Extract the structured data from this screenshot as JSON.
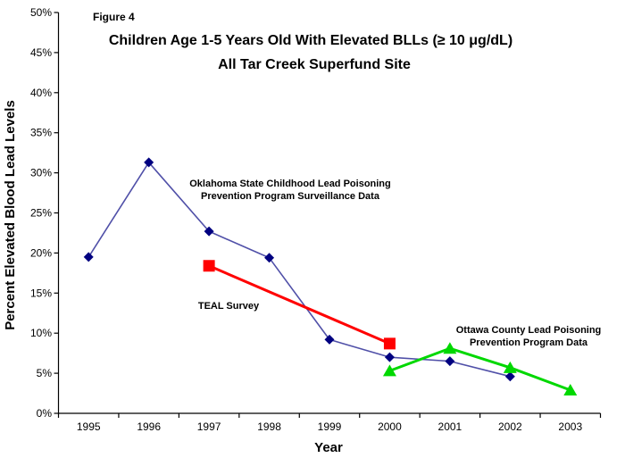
{
  "figure": {
    "label": "Figure 4",
    "title_line1": "Children Age 1-5 Years Old With Elevated BLLs (≥ 10 μg/dL)",
    "title_line2": "All Tar Creek Superfund Site"
  },
  "chart_data": {
    "type": "line",
    "xlabel": "Year",
    "ylabel": "Percent Elevated Blood Lead Levels",
    "x": [
      1995,
      1996,
      1997,
      1998,
      1999,
      2000,
      2001,
      2002,
      2003
    ],
    "x_tick_labels": [
      "1995",
      "1996",
      "1997",
      "1998",
      "1999",
      "2000",
      "2001",
      "2002",
      "2003"
    ],
    "y_tick_labels": [
      "0%",
      "5%",
      "10%",
      "15%",
      "20%",
      "25%",
      "30%",
      "35%",
      "40%",
      "45%",
      "50%"
    ],
    "ylim": [
      0,
      50
    ],
    "y_tick_step": 5,
    "grid": false,
    "legend_position": "none-inline-annotations",
    "series": [
      {
        "id": "oklahoma-surveillance",
        "name": "Oklahoma State Childhood Lead Poisoning Prevention Program Surveillance Data",
        "marker": "diamond",
        "line_color": "#5050A8",
        "marker_color": "#000080",
        "line_width": 1.6,
        "years": [
          1995,
          1996,
          1997,
          1998,
          1999,
          2000,
          2001,
          2002
        ],
        "values": [
          19.5,
          31.3,
          22.7,
          19.4,
          9.2,
          7.0,
          6.5,
          4.6
        ]
      },
      {
        "id": "teal-survey",
        "name": "TEAL Survey",
        "marker": "square",
        "line_color": "#FF0000",
        "marker_color": "#FF0000",
        "line_width": 3,
        "years": [
          1997,
          2000
        ],
        "values": [
          18.4,
          8.7
        ]
      },
      {
        "id": "ottawa-county",
        "name": "Ottawa County Lead Poisoning Prevention Program Data",
        "marker": "triangle",
        "line_color": "#00D800",
        "marker_color": "#00D800",
        "line_width": 3,
        "years": [
          2000,
          2001,
          2002,
          2003
        ],
        "values": [
          5.3,
          8.1,
          5.7,
          2.9
        ]
      }
    ],
    "annotations": [
      {
        "series_id": "oklahoma-surveillance",
        "lines": [
          "Oklahoma State Childhood Lead Poisoning",
          "Prevention Program Surveillance Data"
        ]
      },
      {
        "series_id": "teal-survey",
        "lines": [
          "TEAL Survey"
        ]
      },
      {
        "series_id": "ottawa-county",
        "lines": [
          "Ottawa County Lead Poisoning",
          "Prevention Program Data"
        ]
      }
    ]
  }
}
